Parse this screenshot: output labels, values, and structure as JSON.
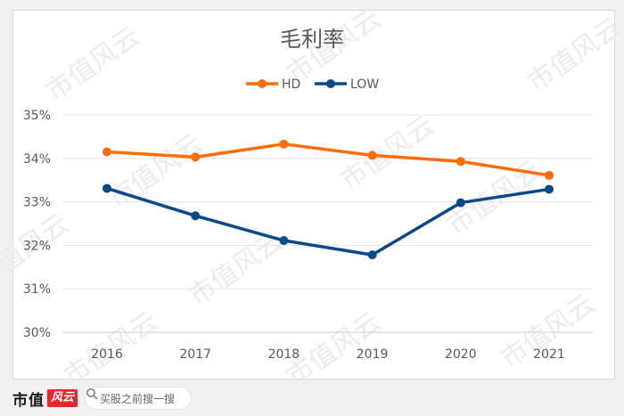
{
  "chart_data": {
    "type": "line",
    "title": "毛利率",
    "categories": [
      "2016",
      "2017",
      "2018",
      "2019",
      "2020",
      "2021"
    ],
    "series": [
      {
        "name": "HD",
        "color": "#ff6d0a",
        "values": [
          34.15,
          34.03,
          34.33,
          34.07,
          33.93,
          33.61
        ]
      },
      {
        "name": "LOW",
        "color": "#0a4a8c",
        "values": [
          33.31,
          32.68,
          32.11,
          31.78,
          32.98,
          33.29
        ]
      }
    ],
    "y_ticks": [
      "30%",
      "31%",
      "32%",
      "33%",
      "34%",
      "35%"
    ],
    "ylim": [
      30,
      35
    ],
    "grid": true,
    "legend_position": "top"
  },
  "watermark": "市值风云",
  "footer": {
    "brand_text": "市值",
    "brand_mark": "风云",
    "search_placeholder": "买股之前搜一搜"
  }
}
